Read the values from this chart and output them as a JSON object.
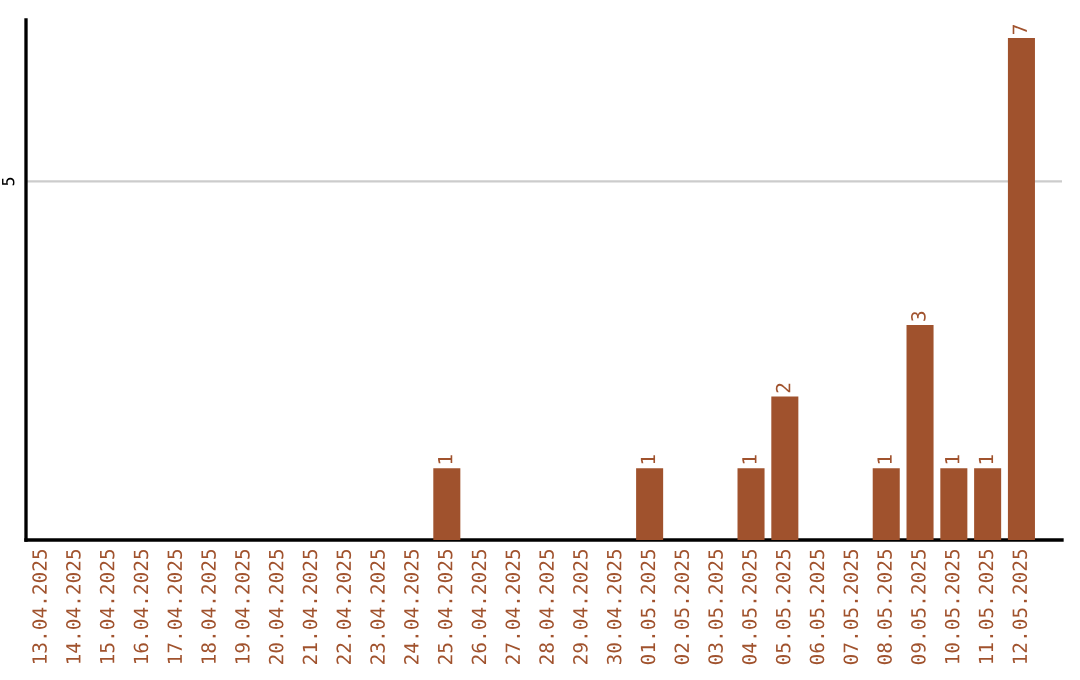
{
  "chart_data": {
    "type": "bar",
    "categories": [
      "13.04.2025",
      "14.04.2025",
      "15.04.2025",
      "16.04.2025",
      "17.04.2025",
      "18.04.2025",
      "19.04.2025",
      "20.04.2025",
      "21.04.2025",
      "22.04.2025",
      "23.04.2025",
      "24.04.2025",
      "25.04.2025",
      "26.04.2025",
      "27.04.2025",
      "28.04.2025",
      "29.04.2025",
      "30.04.2025",
      "01.05.2025",
      "02.05.2025",
      "03.05.2025",
      "04.05.2025",
      "05.05.2025",
      "06.05.2025",
      "07.05.2025",
      "08.05.2025",
      "09.05.2025",
      "10.05.2025",
      "11.05.2025",
      "12.05.2025"
    ],
    "values": [
      null,
      null,
      null,
      null,
      null,
      null,
      null,
      null,
      null,
      null,
      null,
      null,
      1,
      null,
      null,
      null,
      null,
      null,
      1,
      null,
      null,
      1,
      2,
      null,
      null,
      1,
      3,
      1,
      1,
      7
    ],
    "data_labels": true,
    "color": "#a0522d",
    "ref_lines": [
      {
        "axis": "y",
        "value": 5,
        "label": "5",
        "color": "#cccccc"
      }
    ]
  }
}
